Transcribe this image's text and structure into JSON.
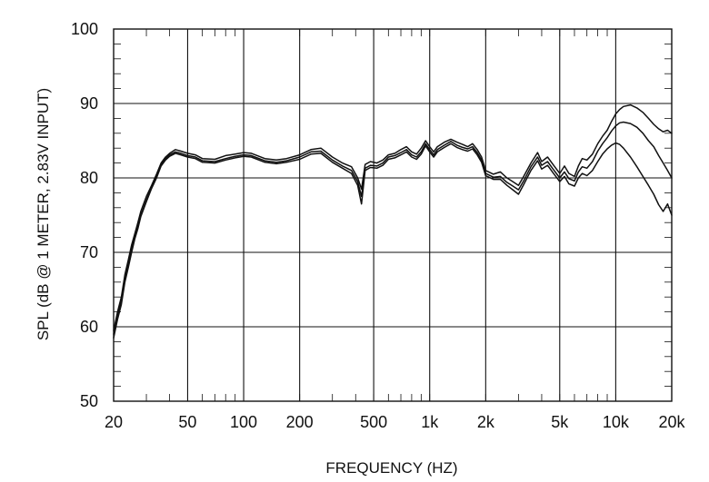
{
  "chart_data": {
    "type": "line",
    "title": "",
    "xlabel": "FREQUENCY  (HZ)",
    "ylabel": "SPL (dB @ 1 METER, 2.83V INPUT)",
    "x_scale": "log",
    "xlim": [
      20,
      20000
    ],
    "ylim": [
      50,
      100
    ],
    "grid": true,
    "x_ticks": [
      {
        "value": 20,
        "label": "20"
      },
      {
        "value": 50,
        "label": "50"
      },
      {
        "value": 100,
        "label": "100"
      },
      {
        "value": 200,
        "label": "200"
      },
      {
        "value": 500,
        "label": "500"
      },
      {
        "value": 1000,
        "label": "1k"
      },
      {
        "value": 2000,
        "label": "2k"
      },
      {
        "value": 5000,
        "label": "5k"
      },
      {
        "value": 10000,
        "label": "10k"
      },
      {
        "value": 20000,
        "label": "20k"
      }
    ],
    "y_ticks": [
      {
        "value": 50,
        "label": "50"
      },
      {
        "value": 60,
        "label": "60"
      },
      {
        "value": 70,
        "label": "70"
      },
      {
        "value": 80,
        "label": "80"
      },
      {
        "value": 90,
        "label": "90"
      },
      {
        "value": 100,
        "label": "100"
      }
    ],
    "series": [
      {
        "x": [
          20,
          21,
          22,
          23,
          24,
          25,
          26,
          27,
          28,
          30,
          32,
          34,
          36,
          38,
          40,
          43,
          46,
          50,
          55,
          60,
          70,
          80,
          90,
          100,
          110,
          130,
          150,
          170,
          200,
          230,
          260,
          300,
          340,
          380,
          410,
          430,
          450,
          480,
          520,
          560,
          600,
          650,
          700,
          750,
          800,
          850,
          900,
          950,
          1000,
          1050,
          1100,
          1200,
          1300,
          1400,
          1500,
          1600,
          1700,
          1800,
          1900,
          2000,
          2200,
          2400,
          2600,
          2800,
          3000,
          3200,
          3500,
          3800,
          4000,
          4300,
          4600,
          5000,
          5300,
          5600,
          6000,
          6300,
          6600,
          7000,
          7500,
          8000,
          8500,
          9000,
          9500,
          10000,
          10500,
          11000,
          12000,
          13000,
          14000,
          15000,
          16000,
          17000,
          18000,
          19000,
          20000
        ],
        "y": [
          59.5,
          62,
          64,
          67,
          69,
          71,
          72.5,
          74,
          75.5,
          77.5,
          79,
          80.5,
          82,
          82.8,
          83.3,
          83.8,
          83.6,
          83.3,
          83.1,
          82.6,
          82.5,
          83.0,
          83.2,
          83.4,
          83.3,
          82.6,
          82.4,
          82.6,
          83.1,
          83.8,
          84.0,
          82.8,
          82.0,
          81.5,
          80.0,
          78.5,
          81.8,
          82.2,
          82.0,
          82.4,
          83.1,
          83.3,
          83.8,
          84.2,
          83.5,
          83.2,
          84.0,
          85.0,
          84.2,
          83.5,
          84.2,
          84.8,
          85.2,
          84.8,
          84.5,
          84.2,
          84.6,
          83.8,
          82.8,
          81.0,
          80.5,
          80.8,
          80.0,
          79.5,
          79.0,
          80.2,
          82.0,
          83.4,
          82.2,
          82.8,
          81.8,
          80.6,
          81.6,
          80.6,
          80.2,
          81.6,
          82.6,
          82.4,
          83.2,
          84.6,
          85.6,
          86.4,
          87.6,
          88.6,
          89.2,
          89.6,
          89.8,
          89.4,
          88.8,
          88.0,
          87.2,
          86.6,
          86.2,
          86.4,
          86.0
        ]
      },
      {
        "x": [
          20,
          21,
          22,
          23,
          24,
          25,
          26,
          27,
          28,
          30,
          32,
          34,
          36,
          38,
          40,
          43,
          46,
          50,
          55,
          60,
          70,
          80,
          90,
          100,
          110,
          130,
          150,
          170,
          200,
          230,
          260,
          300,
          340,
          380,
          410,
          430,
          450,
          480,
          520,
          560,
          600,
          650,
          700,
          750,
          800,
          850,
          900,
          950,
          1000,
          1050,
          1100,
          1200,
          1300,
          1400,
          1500,
          1600,
          1700,
          1800,
          1900,
          2000,
          2200,
          2400,
          2600,
          2800,
          3000,
          3200,
          3500,
          3800,
          4000,
          4300,
          4600,
          5000,
          5300,
          5600,
          6000,
          6300,
          6600,
          7000,
          7500,
          8000,
          8500,
          9000,
          9500,
          10000,
          10500,
          11000,
          12000,
          13000,
          14000,
          15000,
          16000,
          17000,
          18000,
          19000,
          20000
        ],
        "y": [
          59,
          61.5,
          63.5,
          66.5,
          68.5,
          70.5,
          72,
          73.5,
          75,
          77,
          78.8,
          80.2,
          81.8,
          82.6,
          83.1,
          83.5,
          83.3,
          83.0,
          82.8,
          82.3,
          82.2,
          82.6,
          82.9,
          83.1,
          83.0,
          82.3,
          82.1,
          82.3,
          82.8,
          83.5,
          83.6,
          82.4,
          81.6,
          81.0,
          79.5,
          77.5,
          81.3,
          81.7,
          81.6,
          82.0,
          82.8,
          83.0,
          83.4,
          83.8,
          83.1,
          82.8,
          83.5,
          84.6,
          83.8,
          83.1,
          83.8,
          84.4,
          84.9,
          84.4,
          84.1,
          83.9,
          84.2,
          83.4,
          82.4,
          80.6,
          80.1,
          80.2,
          79.4,
          78.9,
          78.4,
          79.6,
          81.5,
          82.8,
          81.7,
          82.2,
          81.2,
          80.0,
          80.8,
          79.9,
          79.6,
          80.8,
          81.5,
          81.3,
          82.2,
          83.6,
          84.6,
          85.4,
          86.3,
          87.0,
          87.4,
          87.5,
          87.3,
          86.8,
          86.0,
          85.0,
          84.2,
          83.0,
          82.0,
          81.0,
          80.0
        ]
      },
      {
        "x": [
          20,
          21,
          22,
          23,
          24,
          25,
          26,
          27,
          28,
          30,
          32,
          34,
          36,
          38,
          40,
          43,
          46,
          50,
          55,
          60,
          70,
          80,
          90,
          100,
          110,
          130,
          150,
          170,
          200,
          230,
          260,
          300,
          340,
          380,
          410,
          430,
          450,
          480,
          520,
          560,
          600,
          650,
          700,
          750,
          800,
          850,
          900,
          950,
          1000,
          1050,
          1100,
          1200,
          1300,
          1400,
          1500,
          1600,
          1700,
          1800,
          1900,
          2000,
          2200,
          2400,
          2600,
          2800,
          3000,
          3200,
          3500,
          3800,
          4000,
          4300,
          4600,
          5000,
          5300,
          5600,
          6000,
          6300,
          6600,
          7000,
          7500,
          8000,
          8500,
          9000,
          9500,
          10000,
          10500,
          11000,
          12000,
          13000,
          14000,
          15000,
          16000,
          17000,
          18000,
          19000,
          20000
        ],
        "y": [
          58.5,
          61,
          63,
          66,
          68,
          70,
          71.8,
          73.2,
          74.8,
          76.8,
          78.6,
          80,
          81.6,
          82.4,
          82.9,
          83.3,
          83.1,
          82.8,
          82.6,
          82.1,
          82.0,
          82.4,
          82.7,
          82.9,
          82.8,
          82.1,
          81.9,
          82.1,
          82.5,
          83.2,
          83.3,
          82.1,
          81.3,
          80.6,
          79.0,
          76.5,
          81.0,
          81.4,
          81.3,
          81.7,
          82.5,
          82.7,
          83.1,
          83.5,
          82.8,
          82.5,
          83.2,
          84.3,
          83.5,
          82.8,
          83.5,
          84.1,
          84.6,
          84.1,
          83.8,
          83.6,
          83.9,
          83.1,
          82.1,
          80.3,
          79.8,
          79.8,
          79.0,
          78.4,
          77.8,
          79.1,
          81.0,
          82.3,
          81.2,
          81.7,
          80.7,
          79.5,
          80.2,
          79.2,
          78.9,
          80.0,
          80.6,
          80.3,
          81.0,
          82.2,
          83.2,
          83.9,
          84.4,
          84.7,
          84.5,
          84.0,
          82.8,
          81.5,
          80.2,
          79.0,
          77.8,
          76.4,
          75.5,
          76.5,
          75.0
        ]
      }
    ]
  }
}
